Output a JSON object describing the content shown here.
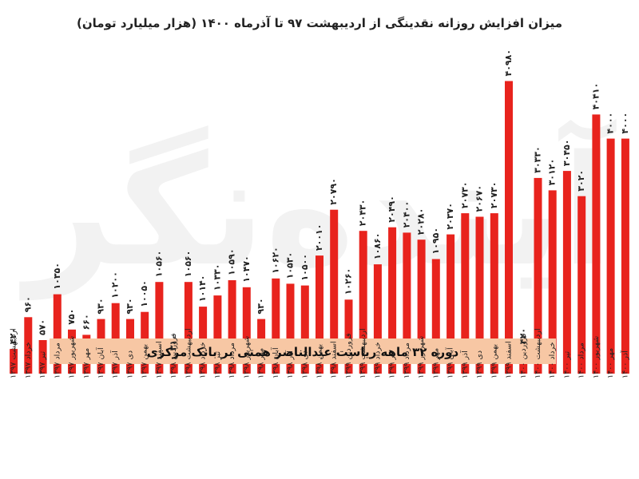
{
  "chart_data": {
    "type": "bar",
    "title": "میزان افزایش روزانه نقدینگی از اردیبهشت ۹۷ تا آذرماه ۱۴۰۰ (هزار میلیارد تومان)",
    "xlabel": "",
    "ylabel": "",
    "ylim": [
      0,
      5000
    ],
    "grid": false,
    "legend": "none",
    "colors": {
      "bar": "#e8231d",
      "band": "#f7c7a4",
      "text": "#222222"
    },
    "annotation": "دوره ۳۲ ماهه ریاست عبدالناصر همتی بر بانک مرکزی",
    "categories": [
      "اردیبهشت ۱۳۹۷",
      "خرداد ۱۳۹۷",
      "تیر ۱۳۹۷",
      "مرداد ۱۳۹۷",
      "شهریور ۱۳۹۷",
      "مهر ۱۳۹۷",
      "آبان ۱۳۹۷",
      "آذر ۱۳۹۷",
      "دی ۱۳۹۷",
      "بهمن ۱۳۹۷",
      "اسفند ۱۳۹۷",
      "فروردین ۱۳۹۸",
      "اردیبهشت ۱۳۹۸",
      "خرداد ۱۳۹۸",
      "تیر ۱۳۹۸",
      "مرداد ۱۳۹۸",
      "شهریور ۱۳۹۸",
      "مهر ۱۳۹۸",
      "آبان ۱۳۹۸",
      "آذر ۱۳۹۸",
      "دی ۱۳۹۸",
      "بهمن ۱۳۹۸",
      "اسفند ۱۳۹۸",
      "فروردین ۱۳۹۹",
      "اردیبهشت ۱۳۹۹",
      "خرداد ۱۳۹۹",
      "تیر ۱۳۹۹",
      "مرداد ۱۳۹۹",
      "شهریور ۱۳۹۹",
      "مهر ۱۳۹۹",
      "آبان ۱۳۹۹",
      "آذر ۱۳۹۹",
      "دی ۱۳۹۹",
      "بهمن ۱۳۹۹",
      "اسفند ۱۳۹۹",
      "فروردین ۱۴۰۰",
      "اردیبهشت ۱۴۰۰",
      "خرداد ۱۴۰۰",
      "تیر ۱۴۰۰",
      "مرداد ۱۴۰۰",
      "شهریور ۱۴۰۰",
      "مهر ۱۴۰۰",
      "آذر ۱۴۰۰"
    ],
    "values": [
      420,
      960,
      570,
      1350,
      750,
      660,
      930,
      1200,
      930,
      1050,
      1560,
      310,
      1560,
      1140,
      1330,
      1590,
      1470,
      930,
      1620,
      1530,
      1500,
      2010,
      2790,
      1260,
      2430,
      1860,
      2490,
      2400,
      2280,
      1950,
      2370,
      2730,
      2670,
      2730,
      4980,
      420,
      3330,
      3120,
      3450,
      3020,
      4410,
      4000,
      4000
    ],
    "labels": [
      "۴۲۰",
      "۹۶۰",
      "۵۷۰",
      "۱۰۳۵۰",
      "۷۵۰",
      "۶۶۰",
      "۹۳۰",
      "۱۰۲۰۰",
      "۹۳۰",
      "۱۰۰۵۰",
      "۱۰۵۶۰",
      "۳۱۰",
      "۱۰۵۶۰",
      "۱۰۱۴۰",
      "۱۰۳۳۰",
      "۱۰۵۹۰",
      "۱۰۴۷۰",
      "۹۳۰",
      "۱۰۶۲۰",
      "۱۰۵۳۰",
      "۱۰۵۰۰",
      "۲۰۰۱۰",
      "۲۰۷۹۰",
      "۱۰۲۶۰",
      "۲۰۴۳۰",
      "۱۰۸۶۰",
      "۲۰۴۹۰",
      "۲۰۴۰۰",
      "۲۰۲۸۰",
      "۱۰۹۵۰",
      "۲۰۳۷۰",
      "۲۰۷۳۰",
      "۲۰۶۷۰",
      "۲۰۷۳۰",
      "۴۰۹۸۰",
      "۴۲۰",
      "۳۰۳۳۰",
      "۳۰۱۲۰",
      "۳۰۴۵۰",
      "۳۰۲۰",
      "۴۰۴۱۰",
      "۴۰۰۰",
      "۴۰۰۰"
    ]
  },
  "watermark": "آینده‌نگر"
}
